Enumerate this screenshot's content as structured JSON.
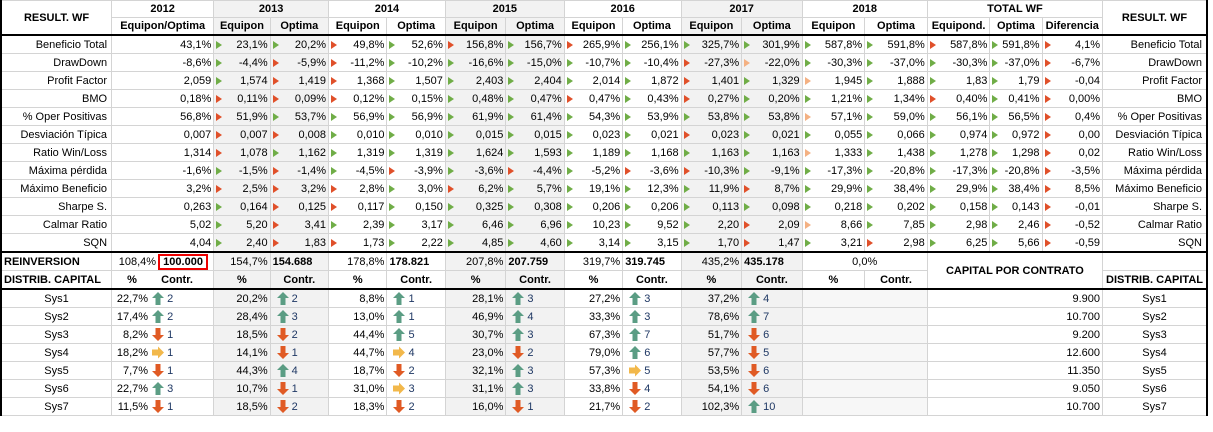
{
  "header": {
    "left_label": "RESULT. WF",
    "right_label": "RESULT. WF",
    "years": [
      "2012",
      "2013",
      "2014",
      "2015",
      "2016",
      "2017",
      "2018"
    ],
    "total_label": "TOTAL WF",
    "col2012": "Equipon/Optima",
    "col_equipon": "Equipon",
    "col_optima": "Optima",
    "col_equipond": "Equipond.",
    "col_diferencia": "Diferencia"
  },
  "metrics": [
    {
      "label": "Beneficio Total",
      "v": [
        "43,1%",
        "23,1%",
        "20,2%",
        "49,8%",
        "52,6%",
        "156,8%",
        "156,7%",
        "265,9%",
        "256,1%",
        "325,7%",
        "301,9%",
        "587,8%",
        "591,8%",
        "587,8%",
        "591,8%",
        "4,1%"
      ],
      "m": [
        "",
        "g",
        "g",
        "rd",
        "g",
        "rd",
        "g",
        "rd",
        "g",
        "g",
        "g",
        "g",
        "g",
        "rd",
        "g",
        "rd"
      ]
    },
    {
      "label": "DrawDown",
      "v": [
        "-8,6%",
        "-4,4%",
        "-5,9%",
        "-11,2%",
        "-10,2%",
        "-16,6%",
        "-15,0%",
        "-10,7%",
        "-10,4%",
        "-27,3%",
        "-22,0%",
        "-30,3%",
        "-37,0%",
        "-30,3%",
        "-37,0%",
        "-6,7%"
      ],
      "m": [
        "",
        "g",
        "rd",
        "rd",
        "g",
        "g",
        "g",
        "g",
        "g",
        "rd",
        "y",
        "g",
        "g",
        "g",
        "g",
        "rd"
      ]
    },
    {
      "label": "Profit Factor",
      "v": [
        "2,059",
        "1,574",
        "1,419",
        "1,368",
        "1,507",
        "2,403",
        "2,404",
        "2,014",
        "1,872",
        "1,401",
        "1,329",
        "1,945",
        "1,888",
        "1,83",
        "1,79",
        "-0,04"
      ],
      "m": [
        "",
        "g",
        "rd",
        "rd",
        "g",
        "g",
        "g",
        "g",
        "g",
        "rd",
        "g",
        "y",
        "g",
        "g",
        "g",
        "rd"
      ]
    },
    {
      "label": "BMO",
      "v": [
        "0,18%",
        "0,11%",
        "0,09%",
        "0,12%",
        "0,15%",
        "0,48%",
        "0,47%",
        "0,47%",
        "0,43%",
        "0,27%",
        "0,20%",
        "1,21%",
        "1,34%",
        "0,40%",
        "0,41%",
        "0,00%"
      ],
      "m": [
        "",
        "rd",
        "rd",
        "rd",
        "g",
        "g",
        "g",
        "rd",
        "g",
        "rd",
        "g",
        "g",
        "g",
        "rd",
        "g",
        "rd"
      ]
    },
    {
      "label": "% Oper Positivas",
      "v": [
        "56,8%",
        "51,9%",
        "53,7%",
        "56,9%",
        "56,9%",
        "61,9%",
        "61,4%",
        "54,3%",
        "53,9%",
        "53,8%",
        "53,8%",
        "57,1%",
        "59,0%",
        "56,1%",
        "56,5%",
        "0,4%"
      ],
      "m": [
        "",
        "rd",
        "g",
        "g",
        "g",
        "g",
        "g",
        "g",
        "g",
        "g",
        "g",
        "y",
        "g",
        "g",
        "g",
        "rd"
      ]
    },
    {
      "label": "Desviación Típica",
      "v": [
        "0,007",
        "0,007",
        "0,008",
        "0,010",
        "0,010",
        "0,015",
        "0,015",
        "0,023",
        "0,021",
        "0,023",
        "0,021",
        "0,055",
        "0,066",
        "0,974",
        "0,972",
        "0,00"
      ],
      "m": [
        "",
        "rd",
        "rd",
        "g",
        "g",
        "g",
        "g",
        "g",
        "g",
        "rd",
        "g",
        "g",
        "g",
        "g",
        "g",
        "rd"
      ]
    },
    {
      "label": "Ratio Win/Loss",
      "v": [
        "1,314",
        "1,078",
        "1,162",
        "1,319",
        "1,319",
        "1,624",
        "1,593",
        "1,189",
        "1,168",
        "1,163",
        "1,163",
        "1,333",
        "1,438",
        "1,278",
        "1,298",
        "0,02"
      ],
      "m": [
        "",
        "rd",
        "g",
        "g",
        "g",
        "g",
        "g",
        "g",
        "g",
        "g",
        "g",
        "y",
        "g",
        "g",
        "g",
        "rd"
      ]
    },
    {
      "label": "Máxima pérdida",
      "v": [
        "-1,6%",
        "-1,5%",
        "-1,4%",
        "-4,5%",
        "-3,9%",
        "-3,6%",
        "-4,4%",
        "-5,2%",
        "-3,6%",
        "-10,3%",
        "-9,1%",
        "-17,3%",
        "-20,8%",
        "-17,3%",
        "-20,8%",
        "-3,5%"
      ],
      "m": [
        "",
        "g",
        "rd",
        "g",
        "rd",
        "g",
        "rd",
        "g",
        "rd",
        "rd",
        "g",
        "g",
        "g",
        "g",
        "g",
        "rd"
      ]
    },
    {
      "label": "Máximo Beneficio",
      "v": [
        "3,2%",
        "2,5%",
        "3,2%",
        "2,8%",
        "3,0%",
        "6,2%",
        "5,7%",
        "19,1%",
        "12,3%",
        "11,9%",
        "8,7%",
        "29,9%",
        "38,4%",
        "29,9%",
        "38,4%",
        "8,5%"
      ],
      "m": [
        "",
        "rd",
        "rd",
        "rd",
        "g",
        "rd",
        "g",
        "g",
        "g",
        "g",
        "rd",
        "g",
        "g",
        "g",
        "g",
        "rd"
      ]
    },
    {
      "label": "Sharpe S.",
      "v": [
        "0,263",
        "0,164",
        "0,125",
        "0,117",
        "0,150",
        "0,325",
        "0,308",
        "0,206",
        "0,206",
        "0,113",
        "0,098",
        "0,218",
        "0,202",
        "0,158",
        "0,143",
        "-0,01"
      ],
      "m": [
        "",
        "g",
        "rd",
        "rd",
        "g",
        "g",
        "g",
        "g",
        "g",
        "g",
        "g",
        "g",
        "g",
        "g",
        "g",
        "rd"
      ]
    },
    {
      "label": "Calmar Ratio",
      "v": [
        "5,02",
        "5,20",
        "3,41",
        "2,39",
        "3,17",
        "6,46",
        "6,96",
        "10,23",
        "9,52",
        "2,20",
        "2,09",
        "8,66",
        "7,85",
        "2,98",
        "2,46",
        "-0,52"
      ],
      "m": [
        "",
        "g",
        "rd",
        "g",
        "g",
        "g",
        "g",
        "g",
        "g",
        "g",
        "rd",
        "y",
        "g",
        "g",
        "g",
        "rd"
      ]
    },
    {
      "label": "SQN",
      "v": [
        "4,04",
        "2,40",
        "1,83",
        "1,73",
        "2,22",
        "4,85",
        "4,60",
        "3,14",
        "3,15",
        "1,70",
        "1,47",
        "3,21",
        "2,98",
        "6,25",
        "5,66",
        "-0,59"
      ],
      "m": [
        "",
        "g",
        "rd",
        "rd",
        "g",
        "g",
        "g",
        "g",
        "g",
        "g",
        "rd",
        "g",
        "rd",
        "g",
        "g",
        "rd"
      ]
    }
  ],
  "reinversion": {
    "label": "REINVERSION",
    "pcts": [
      "108,4%",
      "154,7%",
      "178,8%",
      "207,8%",
      "319,7%",
      "435,2%",
      "0,0%"
    ],
    "vals": [
      "100.000",
      "154.688",
      "178.821",
      "207.759",
      "319.745",
      "435.178"
    ]
  },
  "distrib": {
    "label": "DISTRIB. CAPITAL",
    "right_label": "DISTRIB. CAPITAL",
    "pct": "%",
    "contr": "Contr.",
    "capital_por_contrato": "CAPITAL POR CONTRATO"
  },
  "systems": [
    {
      "name": "Sys1",
      "cells": [
        [
          "22,7%",
          "up",
          "2"
        ],
        [
          "20,2%",
          "up",
          "2"
        ],
        [
          "8,8%",
          "up",
          "1"
        ],
        [
          "28,1%",
          "up",
          "3"
        ],
        [
          "27,2%",
          "up",
          "3"
        ],
        [
          "37,2%",
          "up",
          "4"
        ]
      ],
      "capital": "9.900"
    },
    {
      "name": "Sys2",
      "cells": [
        [
          "17,4%",
          "up",
          "2"
        ],
        [
          "28,4%",
          "up",
          "3"
        ],
        [
          "13,0%",
          "up",
          "1"
        ],
        [
          "46,9%",
          "up",
          "4"
        ],
        [
          "33,3%",
          "up",
          "3"
        ],
        [
          "78,6%",
          "up",
          "7"
        ]
      ],
      "capital": "10.700"
    },
    {
      "name": "Sys3",
      "cells": [
        [
          "8,2%",
          "down",
          "1"
        ],
        [
          "18,5%",
          "down",
          "2"
        ],
        [
          "44,4%",
          "up",
          "5"
        ],
        [
          "30,7%",
          "up",
          "3"
        ],
        [
          "67,3%",
          "up",
          "7"
        ],
        [
          "51,7%",
          "down",
          "6"
        ]
      ],
      "capital": "9.200"
    },
    {
      "name": "Sys4",
      "cells": [
        [
          "18,2%",
          "side",
          "1"
        ],
        [
          "14,1%",
          "down",
          "1"
        ],
        [
          "44,7%",
          "side",
          "4"
        ],
        [
          "23,0%",
          "down",
          "2"
        ],
        [
          "79,0%",
          "up",
          "6"
        ],
        [
          "57,7%",
          "down",
          "5"
        ]
      ],
      "capital": "12.600"
    },
    {
      "name": "Sys5",
      "cells": [
        [
          "7,7%",
          "down",
          "1"
        ],
        [
          "44,3%",
          "up",
          "4"
        ],
        [
          "18,7%",
          "down",
          "2"
        ],
        [
          "32,1%",
          "up",
          "3"
        ],
        [
          "57,3%",
          "side",
          "5"
        ],
        [
          "53,5%",
          "down",
          "6"
        ]
      ],
      "capital": "11.350"
    },
    {
      "name": "Sys6",
      "cells": [
        [
          "22,7%",
          "up",
          "3"
        ],
        [
          "10,7%",
          "down",
          "1"
        ],
        [
          "31,0%",
          "side",
          "3"
        ],
        [
          "31,1%",
          "up",
          "3"
        ],
        [
          "33,8%",
          "down",
          "4"
        ],
        [
          "54,1%",
          "down",
          "6"
        ]
      ],
      "capital": "9.050"
    },
    {
      "name": "Sys7",
      "cells": [
        [
          "11,5%",
          "down",
          "1"
        ],
        [
          "18,5%",
          "down",
          "2"
        ],
        [
          "18,3%",
          "down",
          "2"
        ],
        [
          "16,0%",
          "down",
          "1"
        ],
        [
          "21,7%",
          "down",
          "2"
        ],
        [
          "102,3%",
          "up",
          "10"
        ]
      ],
      "capital": "10.700"
    }
  ]
}
